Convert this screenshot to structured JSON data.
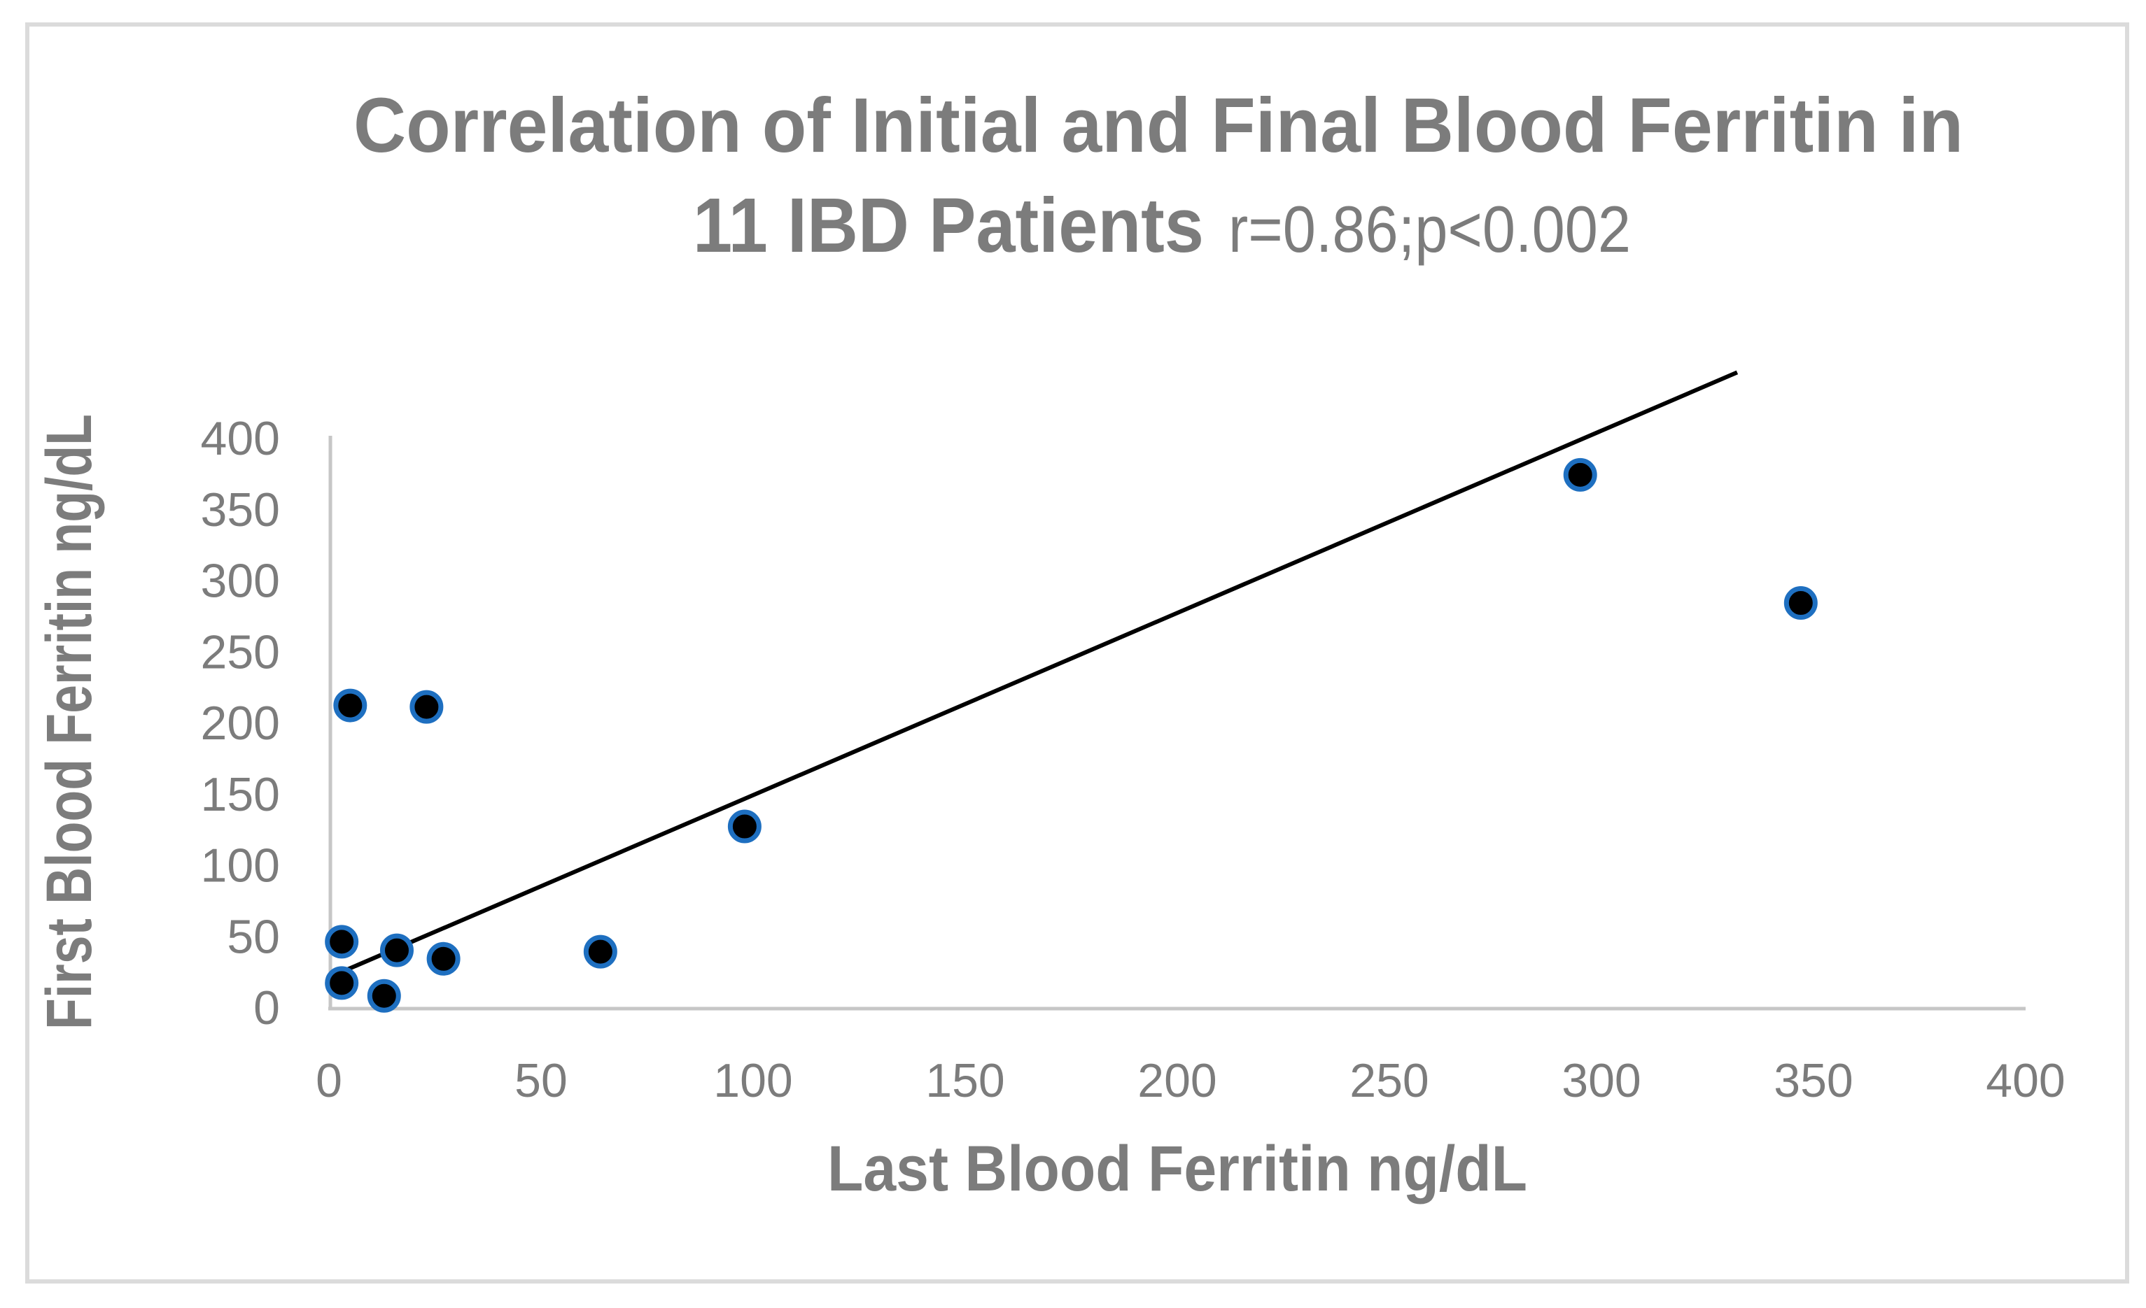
{
  "chart_data": {
    "type": "scatter",
    "title_line1": "Correlation of Initial and Final Blood Ferritin in",
    "title_line2_bold": "11 IBD Patients",
    "title_line2_regular": "r=0.86;p<0.002",
    "xlabel": "Last Blood Ferritin ng/dL",
    "ylabel": "First Blood Ferritin ng/dL",
    "xlim": [
      0,
      400
    ],
    "ylim": [
      0,
      400
    ],
    "xticks": [
      0,
      50,
      100,
      150,
      200,
      250,
      300,
      350,
      400
    ],
    "yticks": [
      0,
      50,
      100,
      150,
      200,
      250,
      300,
      350,
      400
    ],
    "grid": false,
    "legend": "none",
    "points": [
      {
        "x": 3,
        "y": 46
      },
      {
        "x": 3,
        "y": 17
      },
      {
        "x": 5,
        "y": 212
      },
      {
        "x": 13,
        "y": 8
      },
      {
        "x": 16,
        "y": 40
      },
      {
        "x": 23,
        "y": 211
      },
      {
        "x": 27,
        "y": 34
      },
      {
        "x": 64,
        "y": 39
      },
      {
        "x": 98,
        "y": 127
      },
      {
        "x": 295,
        "y": 374
      },
      {
        "x": 347,
        "y": 284
      }
    ],
    "trendline": {
      "x1": 0,
      "y1": 21,
      "x2": 332,
      "y2": 446
    },
    "stats": {
      "r": "0.86",
      "p": "<0.002",
      "n_patients": "11"
    },
    "colors": {
      "marker_fill": "#000000",
      "marker_ring": "#1E6FC0",
      "trend_line": "#000000",
      "axis_line": "#C6C6C6",
      "text_gray": "#7C7C7C",
      "border_gray": "#DBDBDB",
      "background": "#FFFFFF"
    }
  }
}
